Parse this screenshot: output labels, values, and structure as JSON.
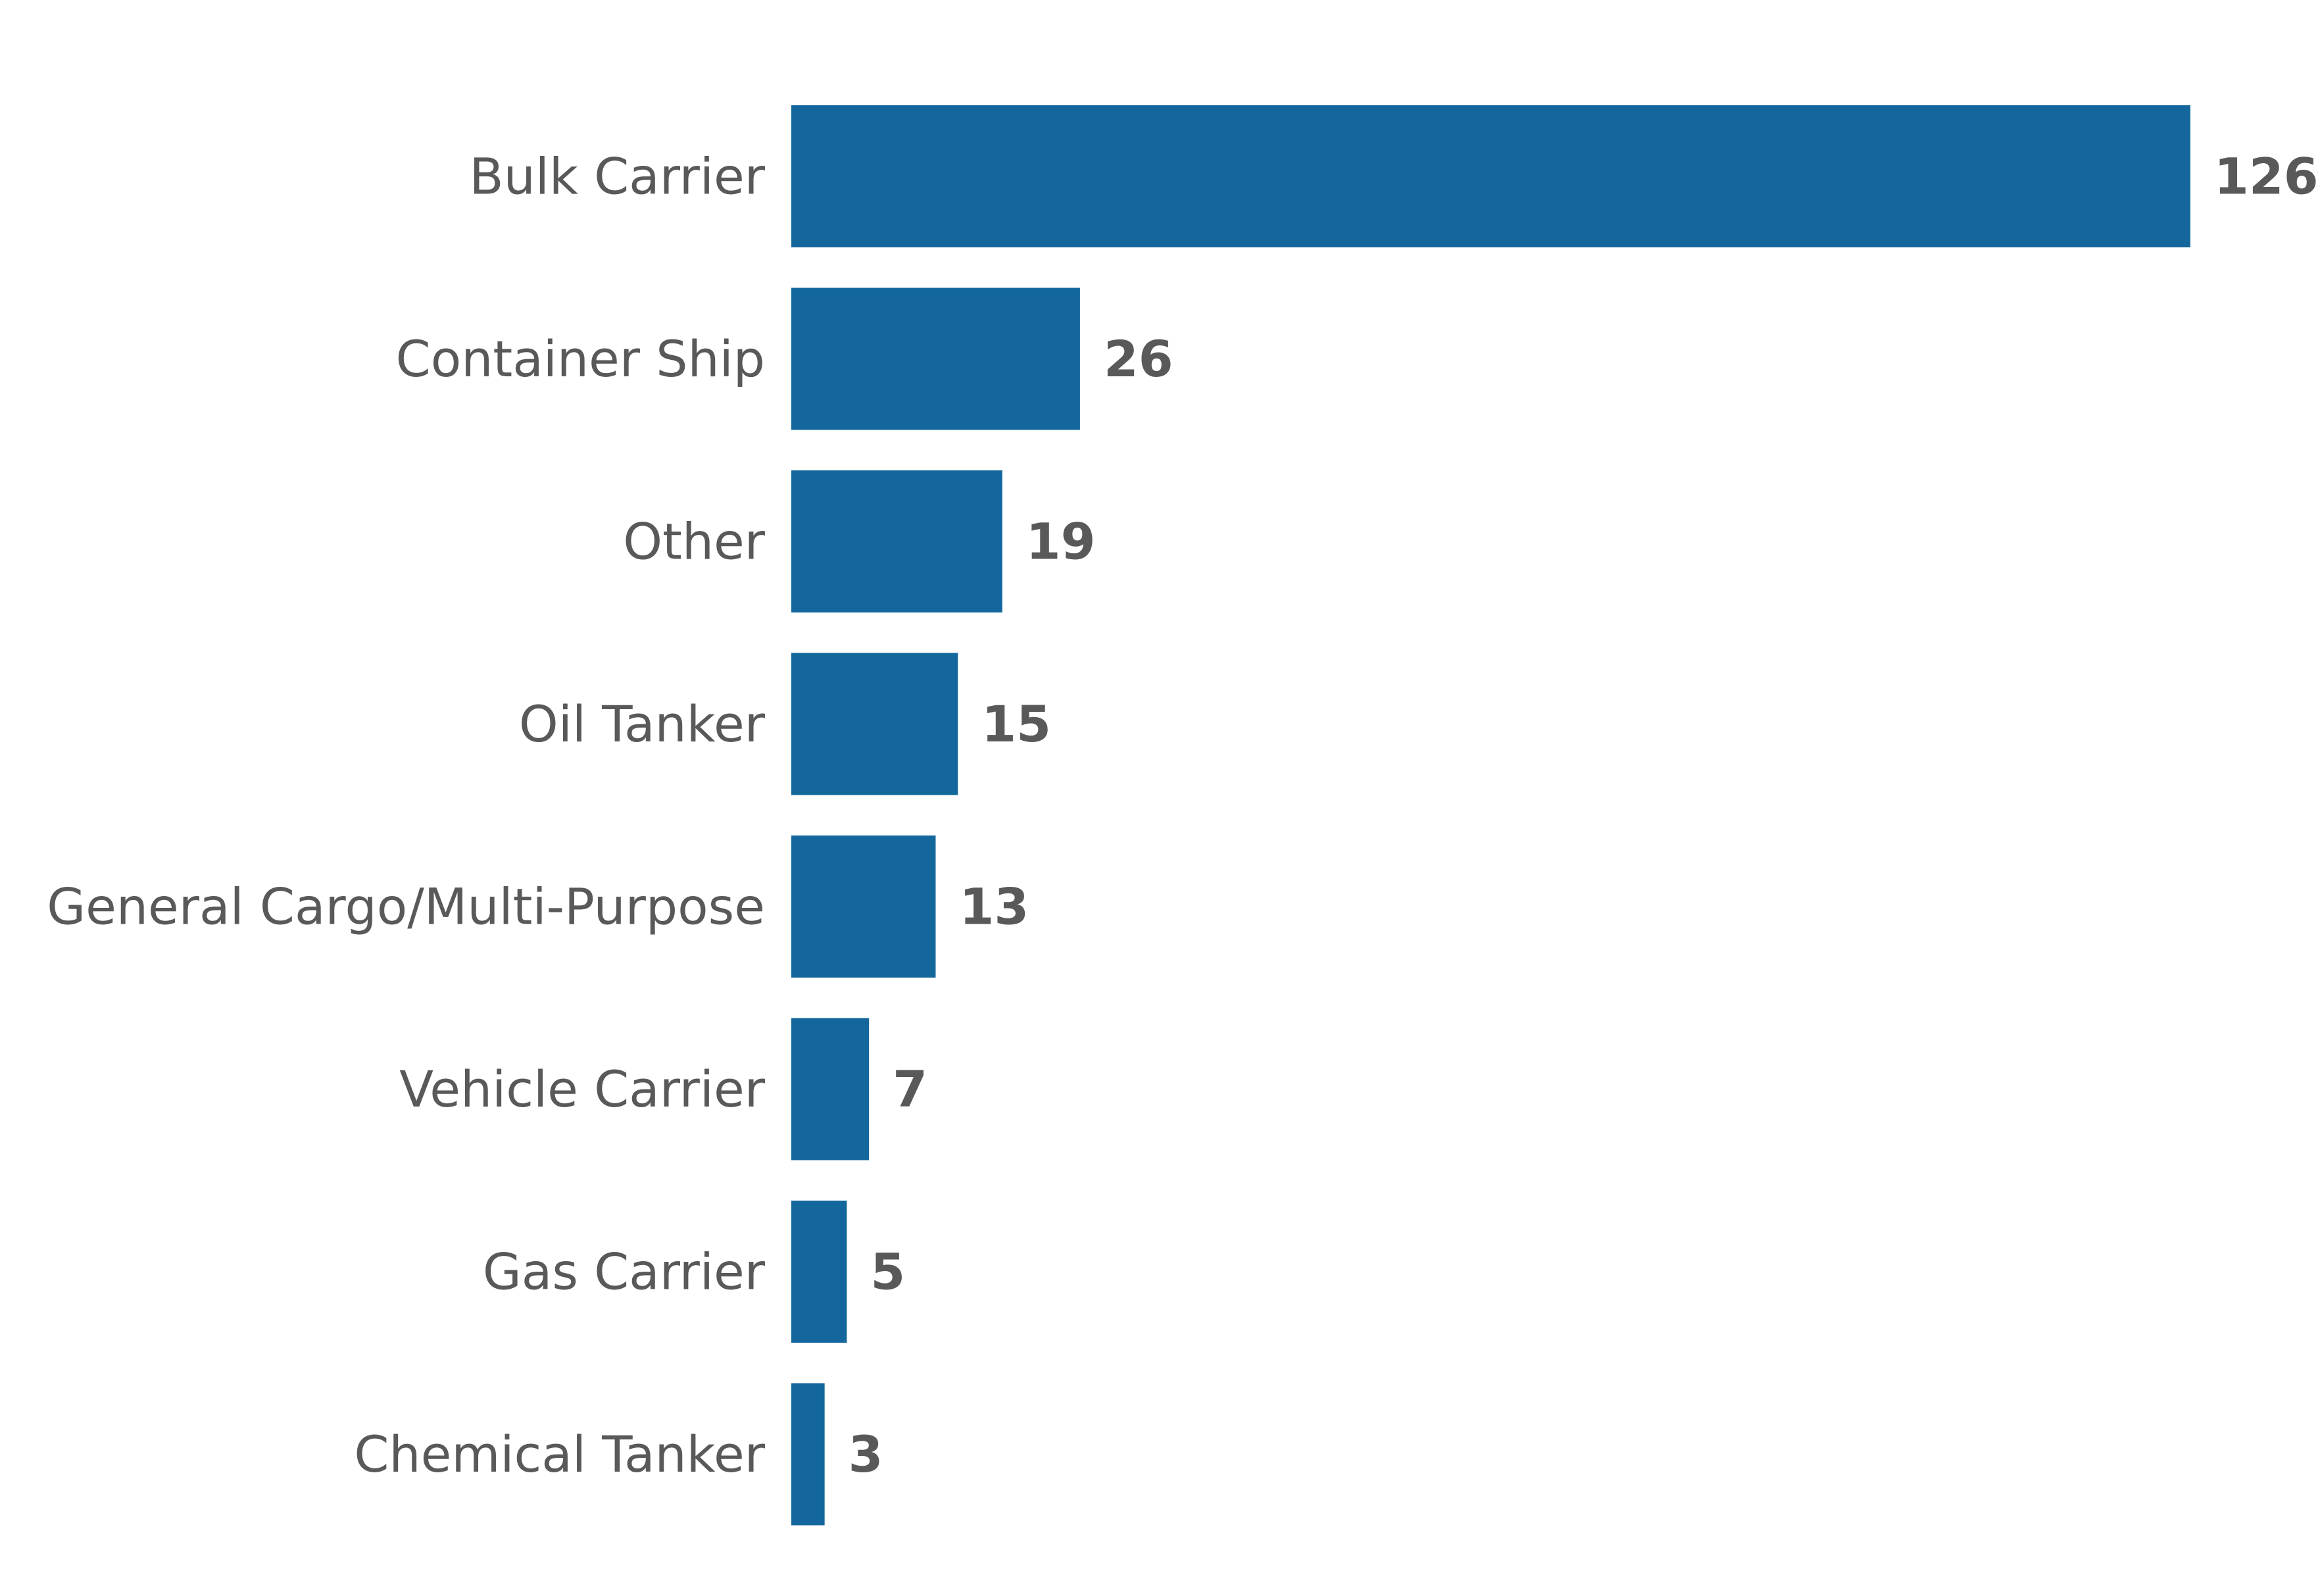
{
  "chart_data": {
    "type": "bar",
    "orientation": "horizontal",
    "title": "",
    "xlabel": "",
    "ylabel": "",
    "categories": [
      "Bulk Carrier",
      "Container Ship",
      "Other",
      "Oil Tanker",
      "General Cargo/Multi-Purpose",
      "Vehicle Carrier",
      "Gas Carrier",
      "Chemical Tanker"
    ],
    "values": [
      126,
      26,
      19,
      15,
      13,
      7,
      5,
      3
    ],
    "value_labels": [
      "126",
      "26",
      "19",
      "15",
      "13",
      "7",
      "5",
      "3"
    ],
    "xlim": [
      0,
      126
    ],
    "grid": false,
    "legend": "none",
    "data_labels": true,
    "bar_color": "#13679c",
    "text_color": "#595959"
  }
}
